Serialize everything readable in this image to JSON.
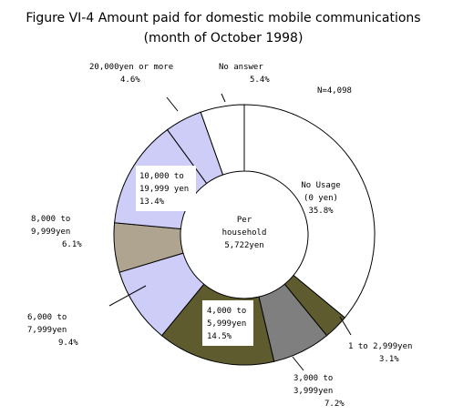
{
  "chart_data": {
    "type": "pie",
    "style": "donut",
    "title": "Figure VI-4 Amount paid for domestic mobile communications",
    "subtitle": "(month of October 1998)",
    "sample_size": "N=4,098",
    "center_label": [
      "Per",
      "household",
      "5,722yen"
    ],
    "slices": [
      {
        "label_lines": [
          "No Usage",
          "(0 yen)"
        ],
        "value": 35.8,
        "value_text": "35.8%",
        "color": "#ffffff"
      },
      {
        "label_lines": [
          "1 to 2,999yen"
        ],
        "value": 3.1,
        "value_text": "3.1%",
        "color": "#5e5c2e"
      },
      {
        "label_lines": [
          "3,000 to",
          "3,999yen"
        ],
        "value": 7.2,
        "value_text": "7.2%",
        "color": "#7f7f7f"
      },
      {
        "label_lines": [
          "4,000 to",
          "5,999yen"
        ],
        "value": 14.5,
        "value_text": "14.5%",
        "color": "#5e5c2e"
      },
      {
        "label_lines": [
          "6,000 to",
          "7,999yen"
        ],
        "value": 9.4,
        "value_text": "9.4%",
        "color": "#cdcdf7"
      },
      {
        "label_lines": [
          "8,000 to",
          "9,999yen"
        ],
        "value": 6.1,
        "value_text": "6.1%",
        "color": "#aea48f"
      },
      {
        "label_lines": [
          "10,000 to",
          "19,999 yen"
        ],
        "value": 13.4,
        "value_text": "13.4%",
        "color": "#cdcdf7"
      },
      {
        "label_lines": [
          "20,000yen or more"
        ],
        "value": 4.6,
        "value_text": "4.6%",
        "color": "#cdcdf7"
      },
      {
        "label_lines": [
          "No answer"
        ],
        "value": 5.4,
        "value_text": "5.4%",
        "color": "#ffffff"
      }
    ]
  }
}
